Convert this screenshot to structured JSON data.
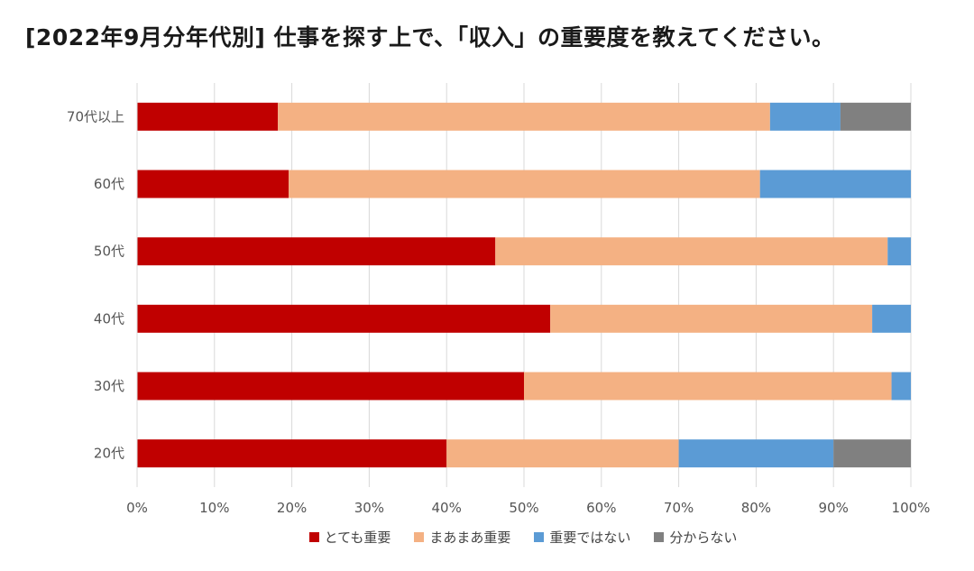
{
  "chart_data": {
    "type": "bar",
    "orientation": "horizontal",
    "stacked": true,
    "title": "[2022年9月分年代別] 仕事を探す上で、「収入」の重要度を教えてください。",
    "categories": [
      "70代以上",
      "60代",
      "50代",
      "40代",
      "30代",
      "20代"
    ],
    "series": [
      {
        "name": "とても重要",
        "color": "#C00000",
        "values": [
          18.2,
          19.6,
          46.3,
          53.4,
          50.0,
          40.0
        ]
      },
      {
        "name": "まあまあ重要",
        "color": "#F4B183",
        "values": [
          63.6,
          60.9,
          50.7,
          41.6,
          47.5,
          30.0
        ]
      },
      {
        "name": "重要ではない",
        "color": "#5B9BD5",
        "values": [
          9.1,
          19.5,
          3.0,
          5.0,
          2.5,
          20.0
        ]
      },
      {
        "name": "分からない",
        "color": "#808080",
        "values": [
          9.1,
          0,
          0,
          0,
          0,
          10.0
        ]
      }
    ],
    "xticks": [
      "0%",
      "10%",
      "20%",
      "30%",
      "40%",
      "50%",
      "60%",
      "70%",
      "80%",
      "90%",
      "100%"
    ],
    "xlim": [
      0,
      100
    ],
    "grid": true,
    "legend_position": "bottom"
  }
}
